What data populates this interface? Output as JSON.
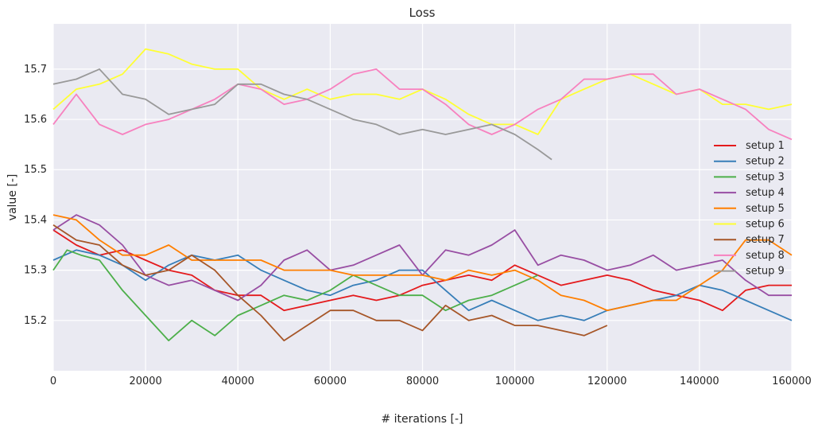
{
  "chart_data": {
    "type": "line",
    "title": "Loss",
    "xlabel": "# iterations [-]",
    "ylabel": "value [-]",
    "xlim": [
      0,
      160000
    ],
    "ylim": [
      15.1,
      15.79
    ],
    "xticks": [
      0,
      20000,
      40000,
      60000,
      80000,
      100000,
      120000,
      140000,
      160000
    ],
    "xtick_labels": [
      "0",
      "20000",
      "40000",
      "60000",
      "80000",
      "100000",
      "120000",
      "140000",
      "160000"
    ],
    "yticks": [
      15.2,
      15.3,
      15.4,
      15.5,
      15.6,
      15.7
    ],
    "ytick_labels": [
      "15.2",
      "15.3",
      "15.4",
      "15.5",
      "15.6",
      "15.7"
    ],
    "grid": true,
    "legend_position": "right",
    "background": "#eaeaf2",
    "series": [
      {
        "name": "setup 1",
        "color": "#e41a1c",
        "x": [
          0,
          5000,
          10000,
          15000,
          20000,
          25000,
          30000,
          35000,
          40000,
          45000,
          50000,
          55000,
          60000,
          65000,
          70000,
          75000,
          80000,
          85000,
          90000,
          95000,
          100000,
          105000,
          110000,
          115000,
          120000,
          125000,
          130000,
          135000,
          140000,
          145000,
          150000,
          155000,
          160000
        ],
        "y": [
          15.38,
          15.35,
          15.33,
          15.34,
          15.32,
          15.3,
          15.29,
          15.26,
          15.25,
          15.25,
          15.22,
          15.23,
          15.24,
          15.25,
          15.24,
          15.25,
          15.27,
          15.28,
          15.29,
          15.28,
          15.31,
          15.29,
          15.27,
          15.28,
          15.29,
          15.28,
          15.26,
          15.25,
          15.24,
          15.22,
          15.26,
          15.27,
          15.27
        ]
      },
      {
        "name": "setup 2",
        "color": "#377eb8",
        "x": [
          0,
          5000,
          10000,
          15000,
          20000,
          25000,
          30000,
          35000,
          40000,
          45000,
          50000,
          55000,
          60000,
          65000,
          70000,
          75000,
          80000,
          85000,
          90000,
          95000,
          100000,
          105000,
          110000,
          115000,
          120000,
          125000,
          130000,
          135000,
          140000,
          145000,
          150000,
          155000,
          160000
        ],
        "y": [
          15.32,
          15.34,
          15.33,
          15.31,
          15.28,
          15.31,
          15.33,
          15.32,
          15.33,
          15.3,
          15.28,
          15.26,
          15.25,
          15.27,
          15.28,
          15.3,
          15.3,
          15.26,
          15.22,
          15.24,
          15.22,
          15.2,
          15.21,
          15.2,
          15.22,
          15.23,
          15.24,
          15.25,
          15.27,
          15.26,
          15.24,
          15.22,
          15.2
        ]
      },
      {
        "name": "setup 3",
        "color": "#4daf4a",
        "x": [
          0,
          3000,
          6000,
          10000,
          15000,
          20000,
          25000,
          30000,
          35000,
          40000,
          45000,
          50000,
          55000,
          60000,
          65000,
          70000,
          75000,
          80000,
          85000,
          90000,
          95000,
          100000,
          105000
        ],
        "y": [
          15.3,
          15.34,
          15.33,
          15.32,
          15.26,
          15.21,
          15.16,
          15.2,
          15.17,
          15.21,
          15.23,
          15.25,
          15.24,
          15.26,
          15.29,
          15.27,
          15.25,
          15.25,
          15.22,
          15.24,
          15.25,
          15.27,
          15.29
        ]
      },
      {
        "name": "setup 4",
        "color": "#984ea3",
        "x": [
          0,
          5000,
          10000,
          15000,
          20000,
          25000,
          30000,
          35000,
          40000,
          45000,
          50000,
          55000,
          60000,
          65000,
          70000,
          75000,
          80000,
          85000,
          90000,
          95000,
          100000,
          105000,
          110000,
          115000,
          120000,
          125000,
          130000,
          135000,
          140000,
          145000,
          150000,
          155000,
          160000
        ],
        "y": [
          15.38,
          15.41,
          15.39,
          15.35,
          15.29,
          15.27,
          15.28,
          15.26,
          15.24,
          15.27,
          15.32,
          15.34,
          15.3,
          15.31,
          15.33,
          15.35,
          15.29,
          15.34,
          15.33,
          15.35,
          15.38,
          15.31,
          15.33,
          15.32,
          15.3,
          15.31,
          15.33,
          15.3,
          15.31,
          15.32,
          15.28,
          15.25,
          15.25
        ]
      },
      {
        "name": "setup 5",
        "color": "#ff7f00",
        "x": [
          0,
          5000,
          10000,
          15000,
          20000,
          25000,
          30000,
          35000,
          40000,
          45000,
          50000,
          55000,
          60000,
          65000,
          70000,
          75000,
          80000,
          85000,
          90000,
          95000,
          100000,
          105000,
          110000,
          115000,
          120000,
          125000,
          130000,
          135000,
          140000,
          145000,
          150000,
          155000,
          160000
        ],
        "y": [
          15.41,
          15.4,
          15.36,
          15.33,
          15.33,
          15.35,
          15.32,
          15.32,
          15.32,
          15.32,
          15.3,
          15.3,
          15.3,
          15.29,
          15.29,
          15.29,
          15.29,
          15.28,
          15.3,
          15.29,
          15.3,
          15.28,
          15.25,
          15.24,
          15.22,
          15.23,
          15.24,
          15.24,
          15.27,
          15.3,
          15.36,
          15.36,
          15.33
        ]
      },
      {
        "name": "setup 6",
        "color": "#ffff33",
        "x": [
          0,
          5000,
          10000,
          15000,
          20000,
          25000,
          30000,
          35000,
          40000,
          45000,
          50000,
          55000,
          60000,
          65000,
          70000,
          75000,
          80000,
          85000,
          90000,
          95000,
          100000,
          105000,
          110000,
          115000,
          120000,
          125000,
          130000,
          135000,
          140000,
          145000,
          150000,
          155000,
          160000
        ],
        "y": [
          15.62,
          15.66,
          15.67,
          15.69,
          15.74,
          15.73,
          15.71,
          15.7,
          15.7,
          15.66,
          15.64,
          15.66,
          15.64,
          15.65,
          15.65,
          15.64,
          15.66,
          15.64,
          15.61,
          15.59,
          15.59,
          15.57,
          15.64,
          15.66,
          15.68,
          15.69,
          15.67,
          15.65,
          15.66,
          15.63,
          15.63,
          15.62,
          15.63
        ]
      },
      {
        "name": "setup 7",
        "color": "#a65628",
        "x": [
          0,
          5000,
          10000,
          15000,
          20000,
          25000,
          30000,
          35000,
          40000,
          45000,
          50000,
          55000,
          60000,
          65000,
          70000,
          75000,
          80000,
          85000,
          90000,
          95000,
          100000,
          105000,
          110000,
          115000,
          120000
        ],
        "y": [
          15.39,
          15.36,
          15.35,
          15.31,
          15.29,
          15.3,
          15.33,
          15.3,
          15.25,
          15.21,
          15.16,
          15.19,
          15.22,
          15.22,
          15.2,
          15.2,
          15.18,
          15.23,
          15.2,
          15.21,
          15.19,
          15.19,
          15.18,
          15.17,
          15.19
        ]
      },
      {
        "name": "setup 8",
        "color": "#f781bf",
        "x": [
          0,
          5000,
          10000,
          15000,
          20000,
          25000,
          30000,
          35000,
          40000,
          45000,
          50000,
          55000,
          60000,
          65000,
          70000,
          75000,
          80000,
          85000,
          90000,
          95000,
          100000,
          105000,
          110000,
          115000,
          120000,
          125000,
          130000,
          135000,
          140000,
          145000,
          150000,
          155000,
          160000
        ],
        "y": [
          15.59,
          15.65,
          15.59,
          15.57,
          15.59,
          15.6,
          15.62,
          15.64,
          15.67,
          15.66,
          15.63,
          15.64,
          15.66,
          15.69,
          15.7,
          15.66,
          15.66,
          15.63,
          15.59,
          15.57,
          15.59,
          15.62,
          15.64,
          15.68,
          15.68,
          15.69,
          15.69,
          15.65,
          15.66,
          15.64,
          15.62,
          15.58,
          15.56
        ]
      },
      {
        "name": "setup 9",
        "color": "#999999",
        "x": [
          0,
          5000,
          10000,
          15000,
          20000,
          25000,
          30000,
          35000,
          40000,
          45000,
          50000,
          55000,
          60000,
          65000,
          70000,
          75000,
          80000,
          85000,
          90000,
          95000,
          100000,
          105000,
          108000
        ],
        "y": [
          15.67,
          15.68,
          15.7,
          15.65,
          15.64,
          15.61,
          15.62,
          15.63,
          15.67,
          15.67,
          15.65,
          15.64,
          15.62,
          15.6,
          15.59,
          15.57,
          15.58,
          15.57,
          15.58,
          15.59,
          15.57,
          15.54,
          15.52
        ]
      }
    ]
  }
}
